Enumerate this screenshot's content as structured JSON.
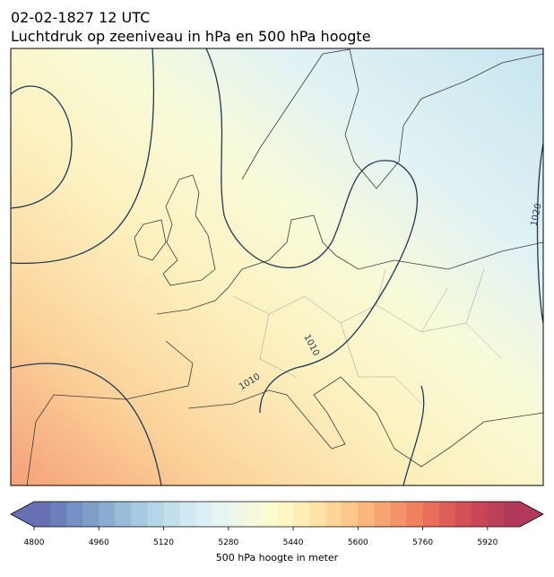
{
  "title": [
    "02-02-1827 12 UTC",
    "Luchtdruk op zeeniveau in hPa en 500 hPa hoogte"
  ],
  "contour_labels": [
    "1010",
    "1010",
    "1020"
  ],
  "colorbar": {
    "label": "500 hPa hoogte in meter",
    "range": [
      4800,
      6000
    ],
    "ticks": [
      4800,
      4960,
      5120,
      5280,
      5440,
      5600,
      5760,
      5920
    ],
    "colors": [
      "#6670b3",
      "#6b7fba",
      "#7590c2",
      "#7f9fc9",
      "#8aaed0",
      "#98bdd8",
      "#a6cadf",
      "#b4d6e6",
      "#c2e0ec",
      "#d0e8f1",
      "#dceff4",
      "#e6f4f2",
      "#eef8ea",
      "#f5fadc",
      "#fbfcd0",
      "#fdf7c6",
      "#fdeeb6",
      "#fde3a6",
      "#fcd597",
      "#fbc78a",
      "#f9b77d",
      "#f7a672",
      "#f39468",
      "#ee8160",
      "#e76f5b",
      "#de5e58",
      "#d35057",
      "#c84658",
      "#bd3f59",
      "#b3395a"
    ]
  }
}
